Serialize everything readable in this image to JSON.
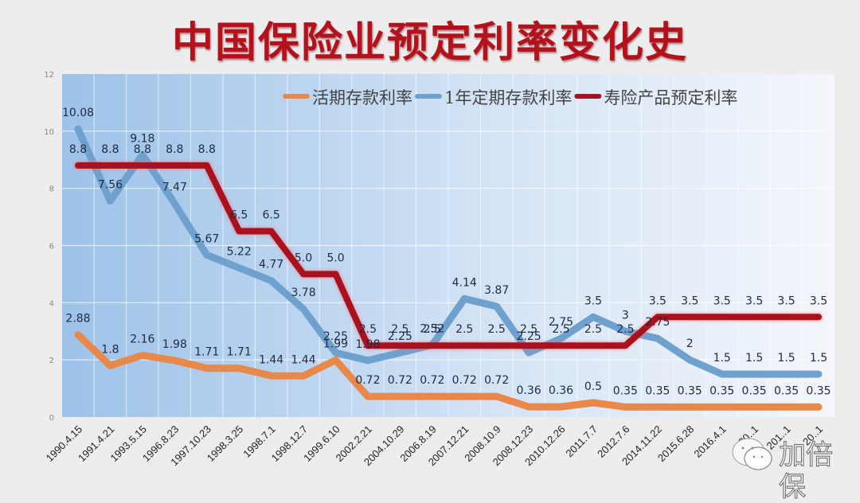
{
  "title": "中国保险业预定利率变化史",
  "colors": {
    "title": "#b3121c",
    "demand_deposit": "#e8884a",
    "one_year_deposit": "#6fa1cf",
    "life_insurance": "#a8111d",
    "plot_bg_left": "#9dc2e8",
    "plot_bg_right": "#f4f6fb",
    "label_text": "#1f2a44"
  },
  "watermark": {
    "text": "加倍保",
    "icon": "wechat-icon"
  },
  "chart_data": {
    "type": "line",
    "title": "中国保险业预定利率变化史",
    "xlabel": "",
    "ylabel": "",
    "ylim": [
      0,
      12
    ],
    "yticks": [
      0,
      2,
      4,
      6,
      8,
      10,
      12
    ],
    "grid": true,
    "legend_position": "top-right",
    "categories": [
      "1990.4.15",
      "1991.4.21",
      "1993.5.15",
      "1996.8.23",
      "1997.10.23",
      "1998.3.25",
      "1998.7.1",
      "1998.12.7",
      "1999.6.10",
      "2002.2.21",
      "2004.10.29",
      "2006.8.19",
      "2007.12.21",
      "2008.10.9",
      "2008.12.23",
      "2010.12.26",
      "2011.7.7",
      "2012.7.6",
      "2014.11.22",
      "2015.6.28",
      "2016.4.1",
      "20..1",
      "201..1",
      "20..1"
    ],
    "series": [
      {
        "name": "活期存款利率",
        "key": "demand_deposit",
        "values": [
          2.88,
          1.8,
          2.16,
          1.98,
          1.71,
          1.71,
          1.44,
          1.44,
          1.99,
          0.72,
          0.72,
          0.72,
          0.72,
          0.72,
          0.36,
          0.36,
          0.5,
          0.35,
          0.35,
          0.35,
          0.35,
          0.35,
          0.35,
          0.35
        ]
      },
      {
        "name": "1年定期存款利率",
        "key": "one_year_deposit",
        "values": [
          10.08,
          7.56,
          9.18,
          7.47,
          5.67,
          5.22,
          4.77,
          3.78,
          2.25,
          1.98,
          2.25,
          2.52,
          4.14,
          3.87,
          2.25,
          2.75,
          3.5,
          3,
          2.75,
          2,
          1.5,
          1.5,
          1.5,
          1.5
        ]
      },
      {
        "name": "寿险产品预定利率",
        "key": "life_insurance",
        "values": [
          8.8,
          8.8,
          8.8,
          8.8,
          8.8,
          6.5,
          6.5,
          5.0,
          5.0,
          2.5,
          2.5,
          2.5,
          2.5,
          2.5,
          2.5,
          2.5,
          2.5,
          2.5,
          3.5,
          3.5,
          3.5,
          3.5,
          3.5,
          3.5
        ],
        "labels": [
          "8.8",
          "8.8",
          "8.8",
          "8.8",
          "8.8",
          "6.5",
          "6.5",
          "5.0",
          "5.0",
          "2.5",
          "2.5",
          "2.5",
          "2.5",
          "2.5",
          "2.5",
          "2.5",
          "2.5",
          "2.5",
          "3.5",
          "3.5",
          "3.5",
          "3.5",
          "3.5",
          "3.5"
        ]
      }
    ]
  }
}
